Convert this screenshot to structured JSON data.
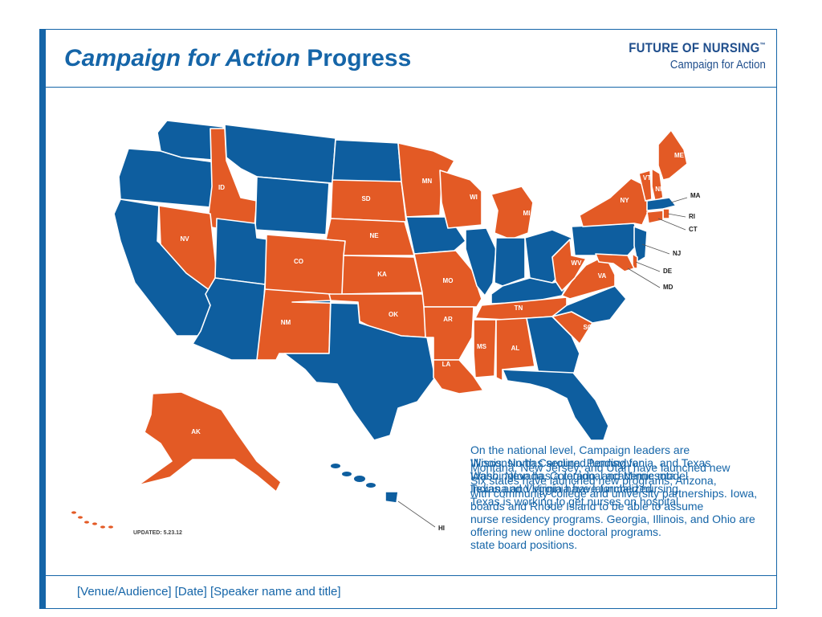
{
  "slide": {
    "title_italic": "Campaign for Action",
    "title_rest": " Progress",
    "logo_line1": "FUTURE OF NURSING",
    "logo_tm": "™",
    "logo_line2": "Campaign for Action",
    "footer": "[Venue/Audience] [Date] [Speaker name and title]",
    "updated": "UPDATED: 5.23.12"
  },
  "map": {
    "colors": {
      "active": "#e35a25",
      "inactive": "#0e5e9f"
    },
    "states": [
      {
        "abbr": "WA",
        "status": "inactive",
        "label": ""
      },
      {
        "abbr": "OR",
        "status": "inactive",
        "label": ""
      },
      {
        "abbr": "CA",
        "status": "inactive",
        "label": ""
      },
      {
        "abbr": "ID",
        "status": "active",
        "label": "ID"
      },
      {
        "abbr": "NV",
        "status": "active",
        "label": "NV"
      },
      {
        "abbr": "MT",
        "status": "inactive",
        "label": ""
      },
      {
        "abbr": "WY",
        "status": "inactive",
        "label": ""
      },
      {
        "abbr": "UT",
        "status": "inactive",
        "label": ""
      },
      {
        "abbr": "AZ",
        "status": "inactive",
        "label": ""
      },
      {
        "abbr": "CO",
        "status": "active",
        "label": "CO"
      },
      {
        "abbr": "NM",
        "status": "active",
        "label": "NM"
      },
      {
        "abbr": "ND",
        "status": "inactive",
        "label": ""
      },
      {
        "abbr": "SD",
        "status": "active",
        "label": "SD"
      },
      {
        "abbr": "NE",
        "status": "active",
        "label": "NE"
      },
      {
        "abbr": "KA",
        "status": "active",
        "label": "KA"
      },
      {
        "abbr": "OK",
        "status": "active",
        "label": "OK"
      },
      {
        "abbr": "TX",
        "status": "inactive",
        "label": ""
      },
      {
        "abbr": "MN",
        "status": "active",
        "label": "MN"
      },
      {
        "abbr": "IA",
        "status": "inactive",
        "label": ""
      },
      {
        "abbr": "MO",
        "status": "active",
        "label": "MO"
      },
      {
        "abbr": "AR",
        "status": "active",
        "label": "AR"
      },
      {
        "abbr": "LA",
        "status": "active",
        "label": "LA"
      },
      {
        "abbr": "WI",
        "status": "active",
        "label": "WI"
      },
      {
        "abbr": "IL",
        "status": "inactive",
        "label": ""
      },
      {
        "abbr": "MI",
        "status": "active",
        "label": "MI"
      },
      {
        "abbr": "IN",
        "status": "inactive",
        "label": ""
      },
      {
        "abbr": "OH",
        "status": "inactive",
        "label": ""
      },
      {
        "abbr": "KY",
        "status": "inactive",
        "label": ""
      },
      {
        "abbr": "TN",
        "status": "active",
        "label": "TN"
      },
      {
        "abbr": "MS",
        "status": "active",
        "label": "MS"
      },
      {
        "abbr": "AL",
        "status": "active",
        "label": "AL"
      },
      {
        "abbr": "GA",
        "status": "inactive",
        "label": ""
      },
      {
        "abbr": "FL",
        "status": "inactive",
        "label": ""
      },
      {
        "abbr": "SC",
        "status": "active",
        "label": "SC"
      },
      {
        "abbr": "NC",
        "status": "inactive",
        "label": ""
      },
      {
        "abbr": "VA",
        "status": "active",
        "label": "VA"
      },
      {
        "abbr": "WV",
        "status": "active",
        "label": "WV"
      },
      {
        "abbr": "PA",
        "status": "inactive",
        "label": ""
      },
      {
        "abbr": "NY",
        "status": "active",
        "label": "NY"
      },
      {
        "abbr": "VT",
        "status": "active",
        "label": "VT"
      },
      {
        "abbr": "NH",
        "status": "active",
        "label": "NH"
      },
      {
        "abbr": "ME",
        "status": "active",
        "label": "ME"
      },
      {
        "abbr": "MA",
        "status": "inactive",
        "label": ""
      },
      {
        "abbr": "RI",
        "status": "active",
        "label": ""
      },
      {
        "abbr": "CT",
        "status": "active",
        "label": ""
      },
      {
        "abbr": "NJ",
        "status": "inactive",
        "label": ""
      },
      {
        "abbr": "DE",
        "status": "active",
        "label": ""
      },
      {
        "abbr": "MD",
        "status": "active",
        "label": ""
      },
      {
        "abbr": "AK",
        "status": "active",
        "label": "AK"
      },
      {
        "abbr": "HI",
        "status": "inactive",
        "label": ""
      }
    ],
    "callouts": [
      "MA",
      "RI",
      "CT",
      "NJ",
      "DE",
      "MD",
      "HI"
    ]
  },
  "overlapping_text": [
    "On the national level, Campaign leaders are",
    "Wisconsin has secured funding for",
    "Idaho, Nevada, Colorado, and Minnesota",
    "Indiana and Virginia have formalized",
    "Illinois, North Carolina, Pennsylvania, and Texas",
    "Washington has a regional academic model",
    "Texas and Virginia have launched nursing",
    "Texas is working to get nurses on hospital",
    "Montana, New Jersey, and Utah have launched new",
    "Six states have launched new programs; Arizona,",
    "with community college and university partnerships. Iowa,",
    "boards and Rhode Island to be able to assume",
    "nurse residency programs. Georgia, Illinois, and Ohio are",
    "offering new online doctoral programs.",
    "state board positions."
  ]
}
